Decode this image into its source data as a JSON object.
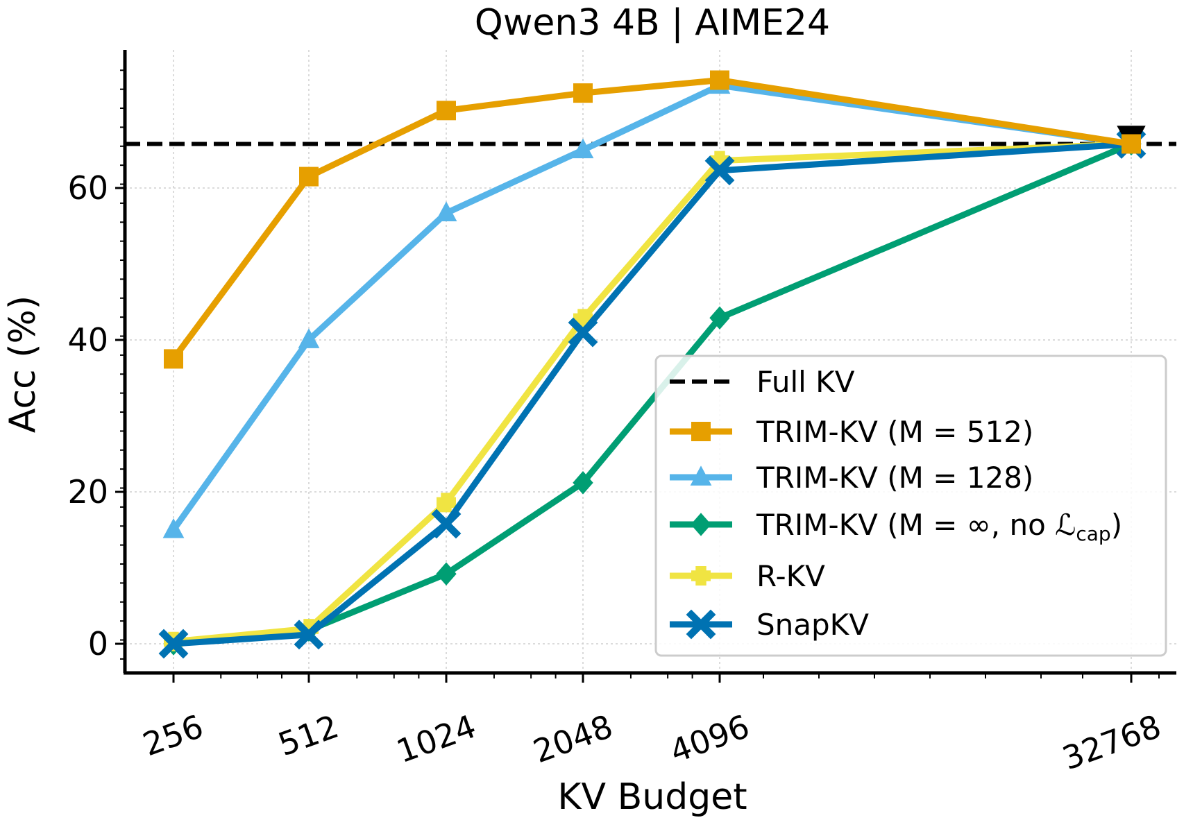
{
  "chart_data": {
    "type": "line",
    "title": "Qwen3 4B | AIME24",
    "xlabel": "KV Budget",
    "ylabel": "Acc (%)",
    "x_scale": "log2",
    "x": [
      256,
      512,
      1024,
      2048,
      4096,
      32768
    ],
    "x_tick_labels": [
      "256",
      "512",
      "1024",
      "2048",
      "4096",
      "32768"
    ],
    "y_ticks": [
      0,
      20,
      40,
      60
    ],
    "y_tick_labels": [
      "0",
      "20",
      "40",
      "60"
    ],
    "ylim": [
      -3.5,
      78
    ],
    "grid": true,
    "legend_position": "lower-right",
    "reference_line": {
      "name": "Full KV",
      "value": 65.8,
      "color": "#000000",
      "style": "dashed"
    },
    "series": [
      {
        "name": "TRIM-KV (M = 512)",
        "color": "#E69F00",
        "marker": "square",
        "values": [
          37.5,
          61.5,
          70.2,
          72.5,
          74.2,
          65.8
        ]
      },
      {
        "name": "TRIM-KV (M = 128)",
        "color": "#56B4E9",
        "marker": "triangle",
        "values": [
          15.0,
          40.0,
          56.7,
          65.0,
          73.5,
          65.8
        ]
      },
      {
        "name": "TRIM-KV (M = ∞, no ",
        "name_math": "ℒ",
        "name_sub": "cap",
        "name_suffix": ")",
        "color": "#009E73",
        "marker": "diamond",
        "values": [
          0.0,
          1.8,
          9.2,
          21.2,
          42.9,
          65.8
        ]
      },
      {
        "name": "R-KV",
        "color": "#F0E442",
        "marker": "plus",
        "values": [
          0.3,
          2.0,
          18.6,
          42.8,
          63.6,
          65.8
        ]
      },
      {
        "name": "SnapKV",
        "color": "#0072B2",
        "marker": "x",
        "values": [
          0.0,
          1.2,
          15.8,
          41.0,
          62.3,
          65.8
        ]
      }
    ]
  }
}
